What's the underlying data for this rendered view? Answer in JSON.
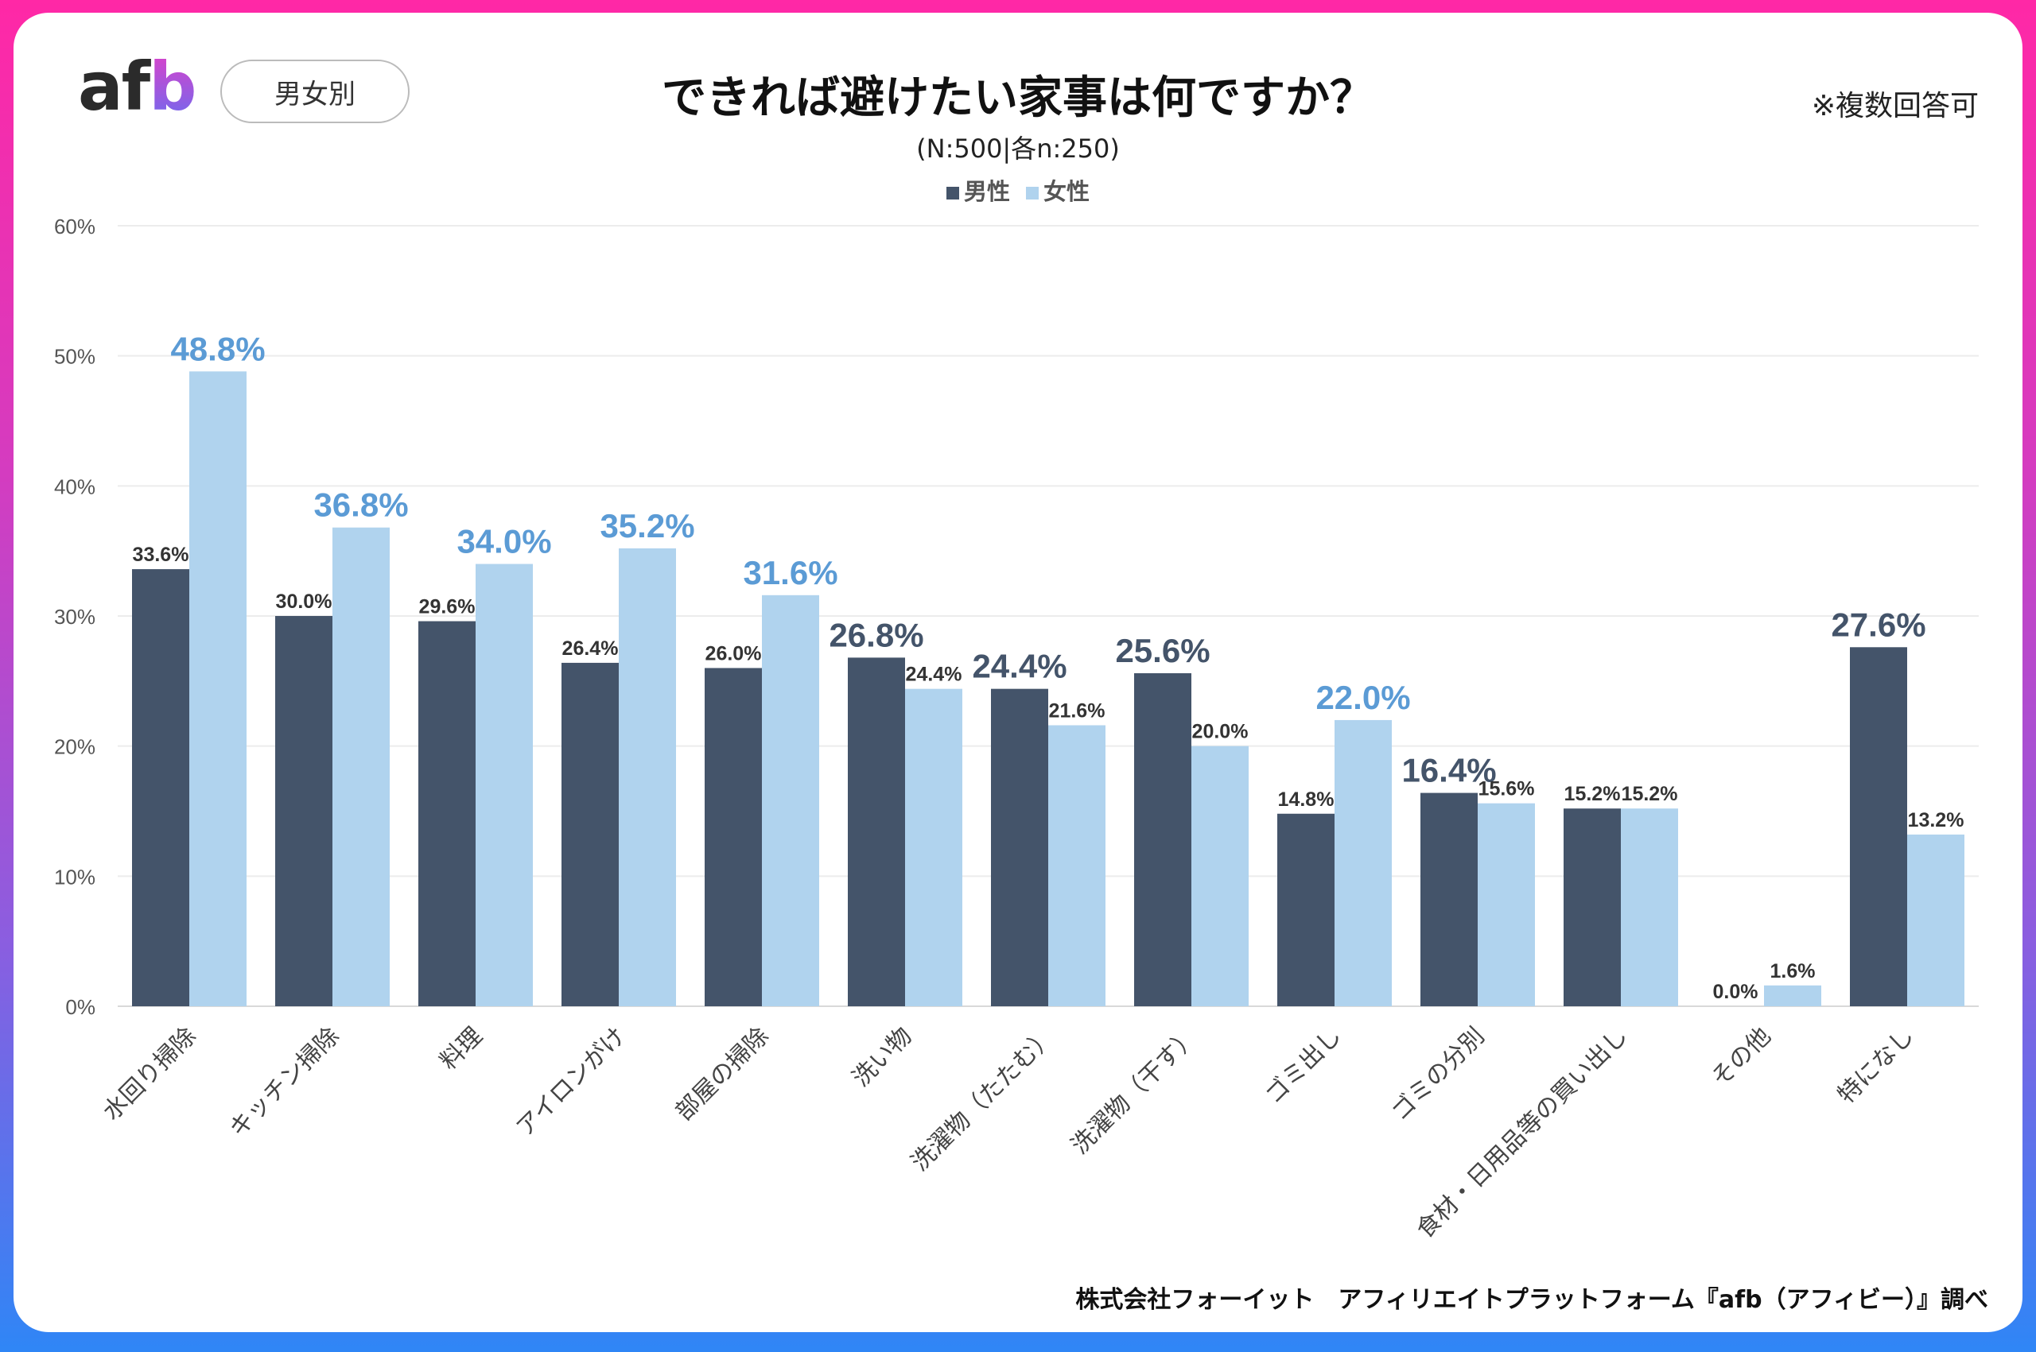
{
  "logo": "afb",
  "badge": "男女別",
  "note": "※複数回答可",
  "footer": "株式会社フォーイット　アフィリエイトプラットフォーム『afb（アフィビー）』調べ",
  "chart_data": {
    "type": "bar",
    "title": "できれば避けたい家事は何ですか？",
    "subtitle": "(N:500|各n:250)",
    "legend_position": "top",
    "grid": true,
    "ylim": [
      0,
      60
    ],
    "yticks": [
      "0%",
      "10%",
      "20%",
      "30%",
      "40%",
      "50%",
      "60%"
    ],
    "categories": [
      "水回り掃除",
      "キッチン掃除",
      "料理",
      "アイロンがけ",
      "部屋の掃除",
      "洗い物",
      "洗濯物（たたむ）",
      "洗濯物（干す）",
      "ゴミ出し",
      "ゴミの分別",
      "食材・日用品等の買い出し",
      "その他",
      "特になし"
    ],
    "series": [
      {
        "name": "男性",
        "color": "#44546a",
        "values": [
          33.6,
          30.0,
          29.6,
          26.4,
          26.0,
          26.8,
          24.4,
          25.6,
          14.8,
          16.4,
          15.2,
          0.0,
          27.6
        ]
      },
      {
        "name": "女性",
        "color": "#b0d3ee",
        "values": [
          48.8,
          36.8,
          34.0,
          35.2,
          31.6,
          24.4,
          21.6,
          20.0,
          22.0,
          15.6,
          15.2,
          1.6,
          13.2
        ]
      }
    ],
    "data_labels": {
      "男性": [
        "33.6%",
        "30.0%",
        "29.6%",
        "26.4%",
        "26.0%",
        "26.8%",
        "24.4%",
        "25.6%",
        "14.8%",
        "16.4%",
        "15.2%",
        "0.0%",
        "27.6%"
      ],
      "女性": [
        "48.8%",
        "36.8%",
        "34.0%",
        "35.2%",
        "31.6%",
        "24.4%",
        "21.6%",
        "20.0%",
        "22.0%",
        "15.6%",
        "15.2%",
        "1.6%",
        "13.2%"
      ]
    },
    "highlighted_series": [
      "女性",
      "女性",
      "女性",
      "女性",
      "女性",
      "男性",
      "男性",
      "男性",
      "女性",
      "男性",
      null,
      null,
      "男性"
    ],
    "highlight_colors": {
      "男性": "#44546a",
      "女性": "#5b9bd5"
    }
  }
}
